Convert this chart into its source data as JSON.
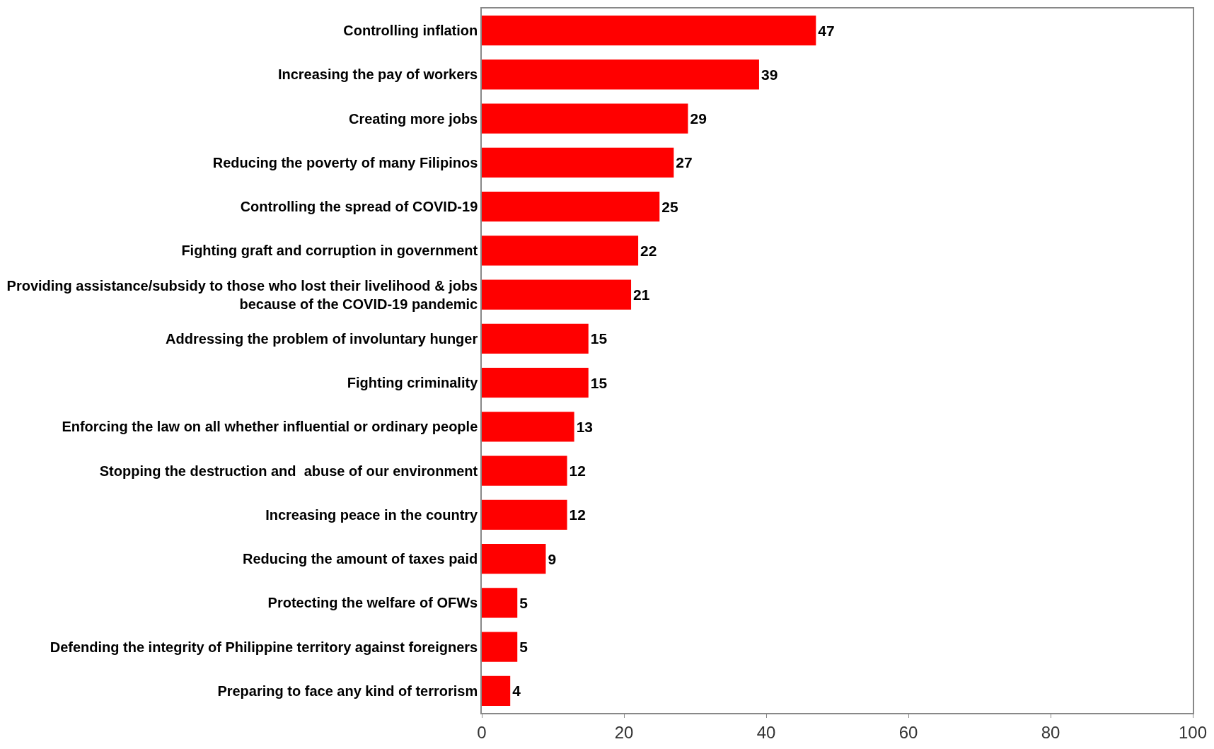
{
  "chart_data": {
    "type": "bar",
    "orientation": "horizontal",
    "color": "#ff0000",
    "categories": [
      "Controlling inflation",
      "Increasing the pay of workers",
      "Creating more jobs",
      "Reducing the poverty of many Filipinos",
      "Controlling the spread of COVID-19",
      "Fighting graft and corruption in government",
      "Providing assistance/subsidy to those who lost their livelihood & jobs\nbecause of the COVID-19 pandemic",
      "Addressing the problem of involuntary hunger",
      "Fighting criminality",
      "Enforcing the law on all whether influential or ordinary people",
      "Stopping the destruction and  abuse of our environment",
      "Increasing peace in the country",
      "Reducing the amount of taxes paid",
      "Protecting the welfare of OFWs",
      "Defending the integrity of Philippine territory against foreigners",
      "Preparing to face any kind of terrorism"
    ],
    "values": [
      47,
      39,
      29,
      27,
      25,
      22,
      21,
      15,
      15,
      13,
      12,
      12,
      9,
      5,
      5,
      4
    ],
    "xlim": [
      0,
      100
    ],
    "xticks": [
      0,
      20,
      40,
      60,
      80,
      100
    ],
    "data_labels": true
  }
}
